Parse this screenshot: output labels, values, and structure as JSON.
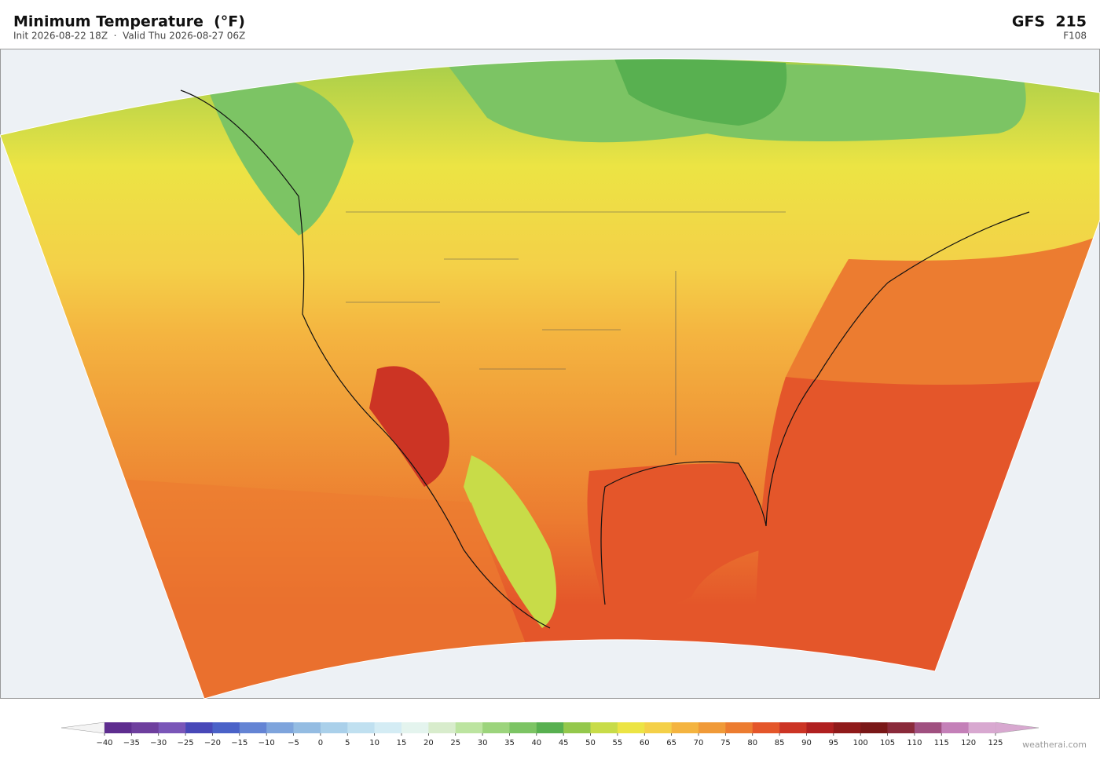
{
  "header": {
    "title": "Minimum Temperature  (°F)",
    "subtitle": "Init 2026-08-22 18Z  ·  Valid Thu 2026-08-27 06Z",
    "model": "GFS  215",
    "forecast_hour": "F108"
  },
  "colorbar": {
    "ticks": [
      {
        "value": -40,
        "label": "−40"
      },
      {
        "value": -35,
        "label": "−35"
      },
      {
        "value": -30,
        "label": "−30"
      },
      {
        "value": -25,
        "label": "−25"
      },
      {
        "value": -20,
        "label": "−20"
      },
      {
        "value": -15,
        "label": "−15"
      },
      {
        "value": -10,
        "label": "−10"
      },
      {
        "value": -5,
        "label": "−5"
      },
      0,
      5,
      10,
      15,
      20,
      25,
      30,
      35,
      40,
      45,
      50,
      55,
      60,
      65,
      70,
      75,
      80,
      85,
      90,
      95,
      100,
      105,
      110,
      115,
      120,
      125
    ],
    "colors": [
      "#5e2d8f",
      "#6e3f9e",
      "#7a56b8",
      "#4848b8",
      "#4a62c8",
      "#6484d4",
      "#7ea4dc",
      "#94bce2",
      "#aad0ea",
      "#c0e0f0",
      "#d4ecf4",
      "#e4f4ee",
      "#d8eccc",
      "#bce4a0",
      "#9cd47c",
      "#7cc464",
      "#58b050",
      "#94c84c",
      "#c8dc48",
      "#ece444",
      "#f4d048",
      "#f4b440",
      "#f09a38",
      "#ec7c30",
      "#e4562a",
      "#cc3424",
      "#b02020",
      "#901a1a",
      "#7a1818",
      "#8a2a3a",
      "#a05080",
      "#c480b8",
      "#d8a8d0"
    ],
    "under_color": "#f4f4f4",
    "over_color": "#d8a8d0"
  },
  "watermark": "weatherai.com"
}
